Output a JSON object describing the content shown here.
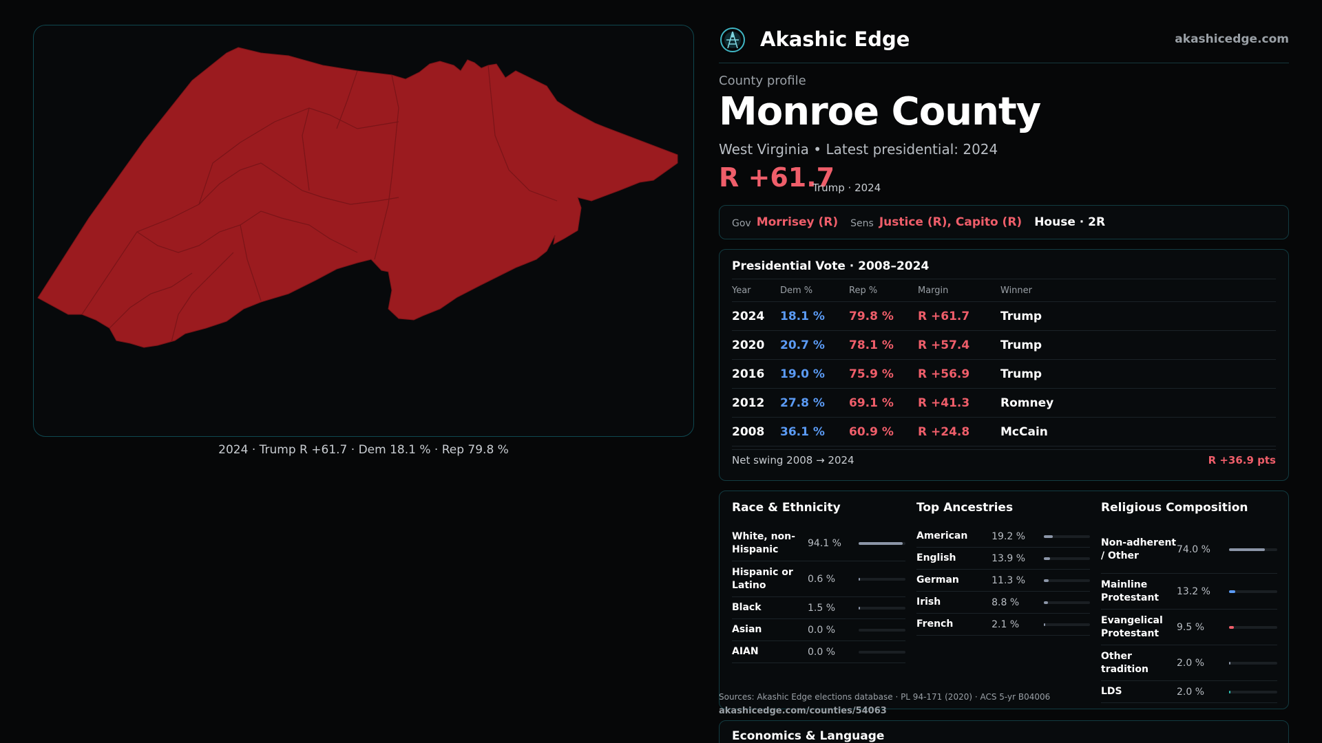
{
  "brand": {
    "name": "Akashic Edge",
    "url": "akashicedge.com"
  },
  "profile": {
    "label": "County profile",
    "county": "Monroe County",
    "subtitle": "West Virginia • Latest presidential: 2024",
    "margin": "R +61.7",
    "margin_meta": "Trump · 2024"
  },
  "officials": {
    "gov_key": "Gov",
    "gov": "Morrisey (R)",
    "sens_key": "Sens",
    "sens": "Justice (R), Capito (R)",
    "house": "House · 2R"
  },
  "map": {
    "caption": "2024 · Trump  R +61.7 · Dem 18.1 % · Rep 79.8 %",
    "fill": "#9b1b1f",
    "border": "#0f4850"
  },
  "vote": {
    "title": "Presidential Vote · 2008–2024",
    "headers": {
      "year": "Year",
      "dem": "Dem %",
      "rep": "Rep %",
      "margin": "Margin",
      "winner": "Winner"
    },
    "rows": [
      {
        "year": "2024",
        "dem": "18.1 %",
        "rep": "79.8 %",
        "margin": "R +61.7",
        "winner": "Trump"
      },
      {
        "year": "2020",
        "dem": "20.7 %",
        "rep": "78.1 %",
        "margin": "R +57.4",
        "winner": "Trump"
      },
      {
        "year": "2016",
        "dem": "19.0 %",
        "rep": "75.9 %",
        "margin": "R +56.9",
        "winner": "Trump"
      },
      {
        "year": "2012",
        "dem": "27.8 %",
        "rep": "69.1 %",
        "margin": "R +41.3",
        "winner": "Romney"
      },
      {
        "year": "2008",
        "dem": "36.1 %",
        "rep": "60.9 %",
        "margin": "R +24.8",
        "winner": "McCain"
      }
    ],
    "swing_label": "Net swing 2008 → 2024",
    "swing_value": "R +36.9 pts"
  },
  "race": {
    "title": "Race & Ethnicity",
    "items": [
      {
        "label": "White, non-Hispanic",
        "value": "94.1 %",
        "pct": 94.1,
        "color": "#8c96a8"
      },
      {
        "label": "Hispanic or Latino",
        "value": "0.6 %",
        "pct": 0.6,
        "color": "#8c96a8"
      },
      {
        "label": "Black",
        "value": "1.5 %",
        "pct": 1.5,
        "color": "#8c96a8"
      },
      {
        "label": "Asian",
        "value": "0.0 %",
        "pct": 0.0,
        "color": "#8c96a8"
      },
      {
        "label": "AIAN",
        "value": "0.0 %",
        "pct": 0.0,
        "color": "#8c96a8"
      }
    ]
  },
  "ancestry": {
    "title": "Top Ancestries",
    "items": [
      {
        "label": "American",
        "value": "19.2 %",
        "pct": 19.2,
        "color": "#8c96a8"
      },
      {
        "label": "English",
        "value": "13.9 %",
        "pct": 13.9,
        "color": "#8c96a8"
      },
      {
        "label": "German",
        "value": "11.3 %",
        "pct": 11.3,
        "color": "#8c96a8"
      },
      {
        "label": "Irish",
        "value": "8.8 %",
        "pct": 8.8,
        "color": "#8c96a8"
      },
      {
        "label": "French",
        "value": "2.1 %",
        "pct": 2.1,
        "color": "#8c96a8"
      }
    ]
  },
  "religion": {
    "title": "Religious Composition",
    "items": [
      {
        "label": "Non-adherent / Other",
        "value": "74.0 %",
        "pct": 74.0,
        "color": "#8c96a8"
      },
      {
        "label": "Mainline Protestant",
        "value": "13.2 %",
        "pct": 13.2,
        "color": "#5b9bf5"
      },
      {
        "label": "Evangelical Protestant",
        "value": "9.5 %",
        "pct": 9.5,
        "color": "#ef5e6a"
      },
      {
        "label": "Other tradition",
        "value": "2.0 %",
        "pct": 2.0,
        "color": "#8c96a8"
      },
      {
        "label": "LDS",
        "value": "2.0 %",
        "pct": 2.0,
        "color": "#2ec4b6"
      }
    ]
  },
  "sources": {
    "text": "Sources: Akashic Edge elections database · PL 94-171 (2020) · ACS 5-yr B04006",
    "url": "akashicedge.com/counties/54063"
  },
  "econ": {
    "title": "Economics & Language"
  }
}
